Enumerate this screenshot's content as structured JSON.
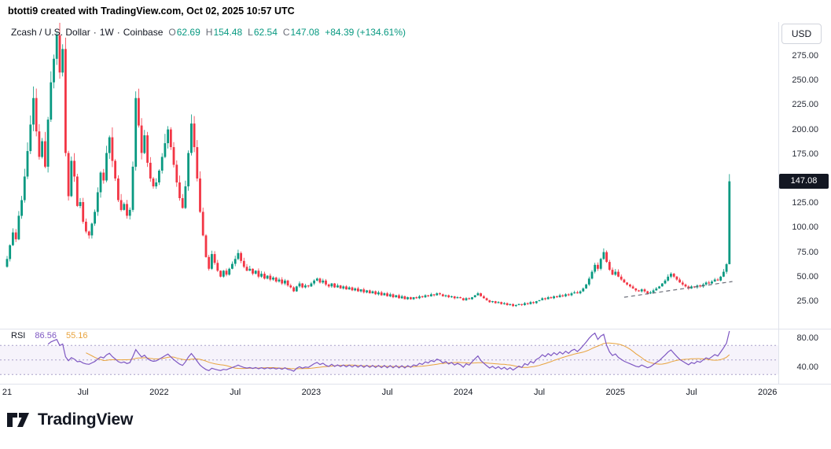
{
  "attribution": "btotti9 created with TradingView.com, Oct 02, 2025 10:57 UTC",
  "header": {
    "symbol": "Zcash / U.S. Dollar",
    "separator": "·",
    "interval": "1W",
    "exchange": "Coinbase",
    "ohlc": {
      "o_label": "O",
      "o": "62.69",
      "h_label": "H",
      "h": "154.48",
      "l_label": "L",
      "l": "62.54",
      "c_label": "C",
      "c": "147.08",
      "change": "+84.39 (+134.61%)"
    }
  },
  "rsi_legend": {
    "label": "RSI",
    "value": "86.56",
    "ma_value": "55.16"
  },
  "axis": {
    "currency_button": "USD",
    "price_ticks": [
      {
        "label": "275.00",
        "value": 275
      },
      {
        "label": "250.00",
        "value": 250
      },
      {
        "label": "225.00",
        "value": 225
      },
      {
        "label": "200.00",
        "value": 200
      },
      {
        "label": "175.00",
        "value": 175
      },
      {
        "label": "125.00",
        "value": 125
      },
      {
        "label": "100.00",
        "value": 100
      },
      {
        "label": "75.00",
        "value": 75
      },
      {
        "label": "50.00",
        "value": 50
      },
      {
        "label": "25.00",
        "value": 25
      }
    ],
    "price_badge": {
      "label": "147.08",
      "value": 147.08
    },
    "rsi_ticks": [
      {
        "label": "80.00",
        "value": 80
      },
      {
        "label": "40.00",
        "value": 40
      }
    ],
    "time_ticks": [
      {
        "label": "21",
        "week": 0
      },
      {
        "label": "Jul",
        "week": 26
      },
      {
        "label": "2022",
        "week": 52
      },
      {
        "label": "Jul",
        "week": 78
      },
      {
        "label": "2023",
        "week": 104
      },
      {
        "label": "Jul",
        "week": 130
      },
      {
        "label": "2024",
        "week": 156
      },
      {
        "label": "Jul",
        "week": 182
      },
      {
        "label": "2025",
        "week": 208
      },
      {
        "label": "Jul",
        "week": 234
      },
      {
        "label": "2026",
        "week": 260
      }
    ]
  },
  "footer": {
    "brand": "TradingView"
  },
  "colors": {
    "up": "#089981",
    "down": "#F23645",
    "rsi": "#7E57C2",
    "rsi_ma": "#E8A33D",
    "rsi_band": "#A9A1C9",
    "trendline": "#6A6D78",
    "badge_bg": "#131722"
  },
  "chart_data": {
    "type": "candlestick",
    "title": "Zcash / U.S. Dollar · 1W · Coinbase",
    "symbol": "ZEC/USD",
    "interval": "weekly",
    "x_axis": {
      "start": "2021-01",
      "end": "2026-01",
      "weeks_shown": 264
    },
    "y_axis": {
      "ticks": [
        275,
        250,
        225,
        200,
        175,
        150,
        125,
        100,
        75,
        50,
        25
      ],
      "visible_range": [
        3,
        308
      ],
      "grid": false
    },
    "last_ohlc": {
      "o": 62.69,
      "h": 154.48,
      "l": 62.54,
      "c": 147.08,
      "change": 84.39,
      "change_pct": 134.61
    },
    "first_open": 60,
    "closes": [
      68,
      82,
      95,
      88,
      112,
      128,
      152,
      178,
      205,
      232,
      198,
      172,
      188,
      162,
      210,
      248,
      272,
      296,
      258,
      282,
      176,
      132,
      168,
      152,
      122,
      126,
      106,
      96,
      92,
      104,
      116,
      136,
      156,
      148,
      176,
      192,
      168,
      150,
      128,
      118,
      124,
      112,
      118,
      162,
      232,
      204,
      176,
      194,
      166,
      150,
      142,
      146,
      158,
      172,
      186,
      200,
      182,
      164,
      146,
      130,
      120,
      142,
      176,
      206,
      182,
      150,
      116,
      92,
      70,
      58,
      73,
      64,
      56,
      50,
      56,
      52,
      58,
      63,
      68,
      74,
      66,
      60,
      56,
      58,
      53,
      56,
      50,
      53,
      48,
      51,
      47,
      49,
      45,
      47,
      43,
      46,
      41,
      39,
      35,
      40,
      43,
      39,
      41,
      40,
      43,
      46,
      48,
      44,
      46,
      42,
      40,
      43,
      39,
      41,
      38,
      40,
      37,
      39,
      36,
      38,
      35,
      37,
      34,
      36,
      33,
      35,
      32,
      34,
      31,
      33,
      30,
      32,
      29,
      31,
      28,
      30,
      27,
      29,
      27,
      29,
      28,
      30,
      29,
      31,
      30,
      32,
      31,
      33,
      32,
      30,
      31,
      29,
      30,
      28,
      29,
      28,
      26,
      28,
      27,
      29,
      31,
      33,
      30,
      28,
      26,
      24,
      25,
      23,
      24,
      22,
      23,
      21,
      22,
      20,
      21,
      22,
      21,
      23,
      22,
      24,
      23,
      25,
      26,
      28,
      27,
      29,
      28,
      30,
      29,
      31,
      30,
      32,
      31,
      33,
      34,
      33,
      35,
      38,
      42,
      48,
      55,
      62,
      58,
      68,
      75,
      65,
      57,
      52,
      55,
      50,
      47,
      44,
      42,
      40,
      38,
      36,
      35,
      37,
      35,
      33,
      34,
      36,
      38,
      40,
      43,
      46,
      50,
      53,
      50,
      47,
      44,
      42,
      40,
      38,
      40,
      39,
      41,
      40,
      42,
      44,
      43,
      45,
      47,
      46,
      50,
      55,
      62.69,
      147.08
    ],
    "last_candle": {
      "o": 62.69,
      "h": 154.48,
      "l": 62.54,
      "c": 147.08
    },
    "trendline": {
      "from_week": 211,
      "from_price": 29,
      "to_week": 248,
      "to_price": 45
    },
    "indicator": {
      "name": "RSI",
      "period": 14,
      "last": 86.56,
      "ma_last": 55.16,
      "bands": [
        70,
        50,
        30
      ],
      "axis_labels": [
        80,
        40
      ],
      "range_shown": [
        18,
        90
      ]
    }
  }
}
